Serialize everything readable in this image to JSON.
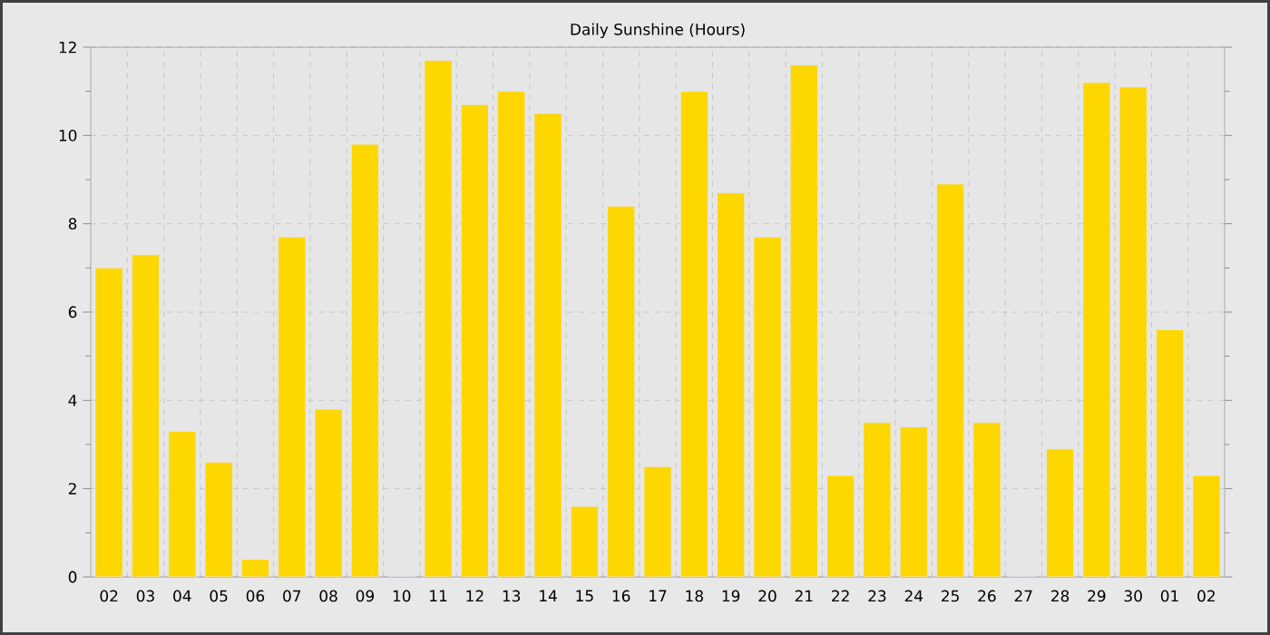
{
  "chart_data": {
    "type": "bar",
    "title": "Daily Sunshine (Hours)",
    "categories": [
      "02",
      "03",
      "04",
      "05",
      "06",
      "07",
      "08",
      "09",
      "10",
      "11",
      "12",
      "13",
      "14",
      "15",
      "16",
      "17",
      "18",
      "19",
      "20",
      "21",
      "22",
      "23",
      "24",
      "25",
      "26",
      "27",
      "28",
      "29",
      "30",
      "01",
      "02"
    ],
    "values": [
      7.0,
      7.3,
      3.3,
      2.6,
      0.4,
      7.7,
      3.8,
      9.8,
      0,
      11.7,
      10.7,
      11.0,
      10.5,
      1.6,
      8.4,
      2.5,
      11.0,
      8.7,
      7.7,
      11.6,
      2.3,
      3.5,
      3.4,
      8.9,
      3.5,
      0,
      2.9,
      11.2,
      11.1,
      5.6,
      2.3
    ],
    "color": "#ffd700",
    "ylim": [
      0,
      12
    ],
    "yticks": [
      0,
      2,
      4,
      6,
      8,
      10,
      12
    ],
    "grid": true
  }
}
